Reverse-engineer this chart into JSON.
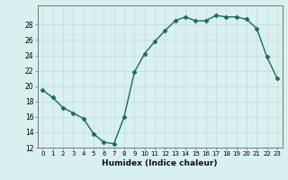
{
  "x": [
    0,
    1,
    2,
    3,
    4,
    5,
    6,
    7,
    8,
    9,
    10,
    11,
    12,
    13,
    14,
    15,
    16,
    17,
    18,
    19,
    20,
    21,
    22,
    23
  ],
  "y": [
    19.5,
    18.5,
    17.2,
    16.5,
    15.8,
    13.8,
    12.7,
    12.5,
    16.0,
    21.8,
    24.2,
    25.8,
    27.2,
    28.5,
    29.0,
    28.5,
    28.5,
    29.2,
    29.0,
    29.0,
    28.7,
    27.5,
    23.8,
    21.0
  ],
  "line_color": "#1a6b5a",
  "marker": "D",
  "marker_size": 2.5,
  "bg_color": "#d8f0f0",
  "grid_color": "#c8dede",
  "xlabel": "Humidex (Indice chaleur)",
  "ylim": [
    12,
    30
  ],
  "xlim": [
    -0.5,
    23.5
  ],
  "yticks": [
    12,
    14,
    16,
    18,
    20,
    22,
    24,
    26,
    28
  ],
  "xticks": [
    0,
    1,
    2,
    3,
    4,
    5,
    6,
    7,
    8,
    9,
    10,
    11,
    12,
    13,
    14,
    15,
    16,
    17,
    18,
    19,
    20,
    21,
    22,
    23
  ]
}
